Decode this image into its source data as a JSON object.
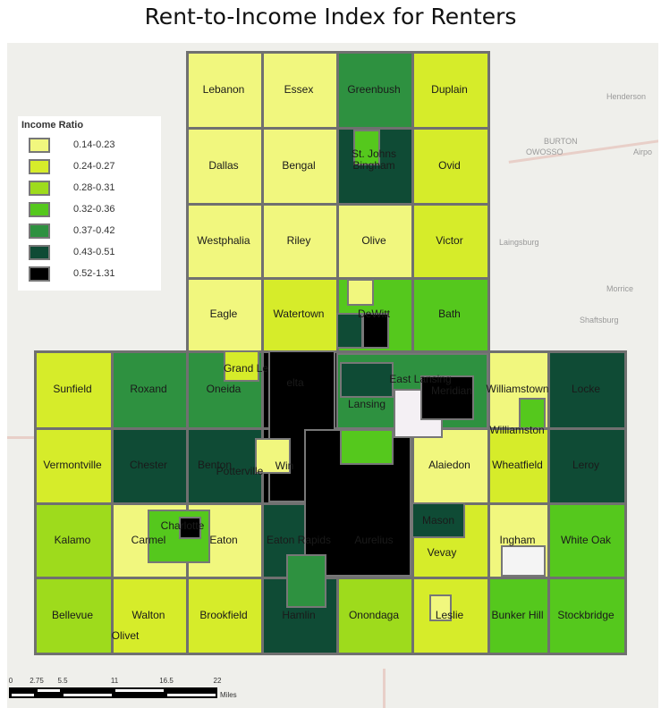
{
  "title": "Rent-to-Income Index for Renters",
  "legend": {
    "title": "Income   Ratio",
    "items": [
      {
        "label": "0.14-0.23",
        "color": "#f1f77e"
      },
      {
        "label": "0.24-0.27",
        "color": "#d6ec2a"
      },
      {
        "label": "0.28-0.31",
        "color": "#9edb1c"
      },
      {
        "label": "0.32-0.36",
        "color": "#55c81d"
      },
      {
        "label": "0.37-0.42",
        "color": "#2e9140"
      },
      {
        "label": "0.43-0.51",
        "color": "#0f4b35"
      },
      {
        "label": "0.52-1.31",
        "color": "#000000"
      }
    ]
  },
  "townships": [
    {
      "name": "Lebanon",
      "cls": 0
    },
    {
      "name": "Essex",
      "cls": 0
    },
    {
      "name": "Greenbush",
      "cls": 4
    },
    {
      "name": "Duplain",
      "cls": 1
    },
    {
      "name": "Dallas",
      "cls": 0
    },
    {
      "name": "Bengal",
      "cls": 0
    },
    {
      "name": "Bingham",
      "cls": 5
    },
    {
      "name": "Ovid",
      "cls": 1
    },
    {
      "name": "Westphalia",
      "cls": 0
    },
    {
      "name": "Riley",
      "cls": 0
    },
    {
      "name": "Olive",
      "cls": 0
    },
    {
      "name": "Victor",
      "cls": 1
    },
    {
      "name": "Eagle",
      "cls": 0
    },
    {
      "name": "Watertown",
      "cls": 1
    },
    {
      "name": "DeWitt",
      "cls": 3
    },
    {
      "name": "Bath",
      "cls": 3
    },
    {
      "name": "Sunfield",
      "cls": 1
    },
    {
      "name": "Roxand",
      "cls": 4
    },
    {
      "name": "Oneida",
      "cls": 4
    },
    {
      "name": "elta",
      "cls": 6
    },
    {
      "name": "Lansing",
      "cls": 4
    },
    {
      "name": "Meridian",
      "cls": 3
    },
    {
      "name": "Williamstown",
      "cls": 0
    },
    {
      "name": "Locke",
      "cls": 5
    },
    {
      "name": "Vermontville",
      "cls": 1
    },
    {
      "name": "Chester",
      "cls": 5
    },
    {
      "name": "Benton",
      "cls": 5
    },
    {
      "name": "Win",
      "cls": 6
    },
    {
      "name": "",
      "cls": 6
    },
    {
      "name": "Alaiedon",
      "cls": 0
    },
    {
      "name": "Wheatfield",
      "cls": 1
    },
    {
      "name": "Leroy",
      "cls": 5
    },
    {
      "name": "Kalamo",
      "cls": 2
    },
    {
      "name": "Carmel",
      "cls": 0
    },
    {
      "name": "Eaton",
      "cls": 0
    },
    {
      "name": "Eaton Rapids",
      "cls": 5
    },
    {
      "name": "Aurelius",
      "cls": 0
    },
    {
      "name": "Vevay",
      "cls": 1
    },
    {
      "name": "Ingham",
      "cls": 0
    },
    {
      "name": "White Oak",
      "cls": 3
    },
    {
      "name": "Bellevue",
      "cls": 2
    },
    {
      "name": "Walton",
      "cls": 1
    },
    {
      "name": "Brookfield",
      "cls": 1
    },
    {
      "name": "Hamlin",
      "cls": 5
    },
    {
      "name": "Onondaga",
      "cls": 2
    },
    {
      "name": "Leslie",
      "cls": 1
    },
    {
      "name": "Bunker Hill",
      "cls": 3
    },
    {
      "name": "Stockbridge",
      "cls": 3
    }
  ],
  "cities": [
    "St. Johns",
    "Grand Le",
    "East Lansing",
    "Williamston",
    "Potterville",
    "Charlotte",
    "Mason",
    "Olivet"
  ],
  "background_labels": [
    "Henderson",
    "BURTON",
    "OWOSSO",
    "Airpo",
    "Laingsburg",
    "Morrice",
    "Shaftsburg"
  ],
  "scale": {
    "ticks": [
      "0",
      "2.75",
      "5.5",
      "11",
      "16.5",
      "22"
    ],
    "unit": "Miles"
  }
}
